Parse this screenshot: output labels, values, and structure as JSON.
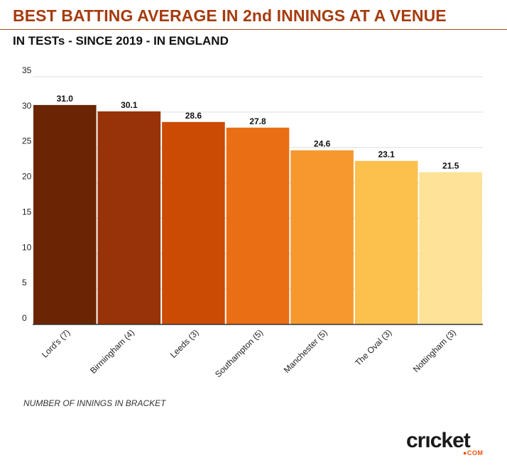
{
  "header": {
    "title": "BEST BATTING AVERAGE IN 2nd INNINGS AT A VENUE",
    "subtitle": "IN TESTs - SINCE 2019 - IN ENGLAND"
  },
  "footnote": "NUMBER OF INNINGS IN BRACKET",
  "logo": {
    "text": "crıcket",
    "sub": "●COM"
  },
  "chart_data": {
    "type": "bar",
    "categories": [
      "Lord's (7)",
      "Birmingham (4)",
      "Leeds (3)",
      "Southampton (5)",
      "Manchester (5)",
      "The Oval (3)",
      "Nottingham (3)"
    ],
    "values": [
      31.0,
      30.1,
      28.6,
      27.8,
      24.6,
      23.1,
      21.5
    ],
    "value_labels": [
      "31.0",
      "30.1",
      "28.6",
      "27.8",
      "24.6",
      "23.1",
      "21.5"
    ],
    "colors": [
      "#6b2505",
      "#983208",
      "#cb4b05",
      "#ea6e14",
      "#f7982e",
      "#fcc04c",
      "#fde298"
    ],
    "title": "BEST BATTING AVERAGE IN 2nd INNINGS AT A VENUE",
    "xlabel": "",
    "ylabel": "",
    "ylim": [
      0,
      35
    ],
    "yticks": [
      0,
      5,
      10,
      15,
      20,
      25,
      30,
      35
    ],
    "grid": true,
    "legend": "none"
  }
}
